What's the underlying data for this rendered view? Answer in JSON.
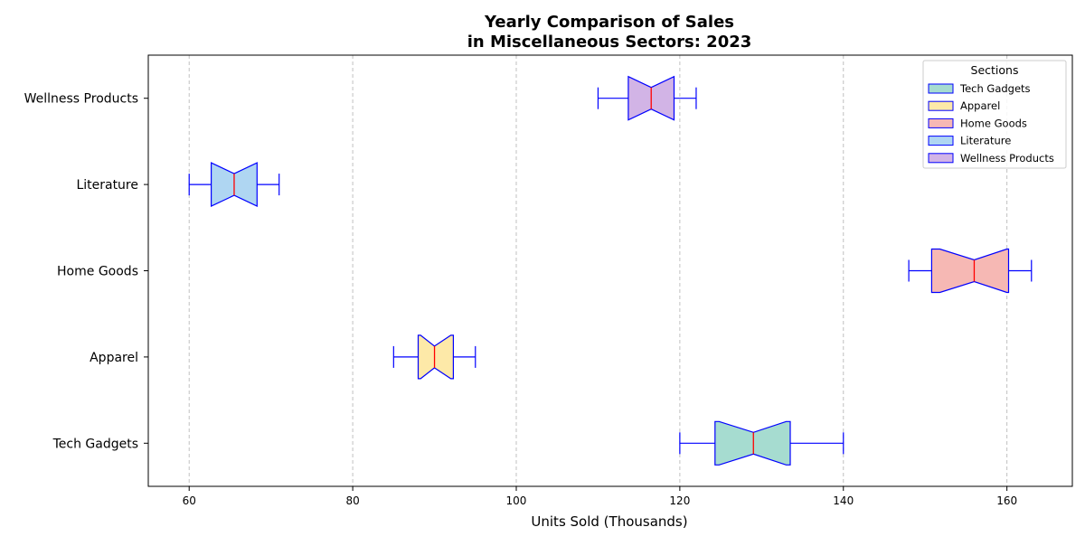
{
  "chart_data": {
    "type": "box",
    "orientation": "horizontal",
    "notched": true,
    "title_lines": [
      "Yearly Comparison of Sales",
      "in Miscellaneous Sectors: 2023"
    ],
    "xlabel": "Units Sold (Thousands)",
    "ylabel": "",
    "xlim": [
      55,
      168
    ],
    "xticks": [
      60,
      80,
      100,
      120,
      140,
      160
    ],
    "grid": "x-dashed",
    "legend_title": "Sections",
    "legend_position": "top-right",
    "series": [
      {
        "name": "Tech Gadgets",
        "min": 120,
        "q1": 124.3,
        "median": 129,
        "q3": 133.5,
        "max": 140,
        "notch_low": 124.8,
        "notch_high": 133,
        "color": "#a6dcd0"
      },
      {
        "name": "Apparel",
        "min": 85,
        "q1": 88,
        "median": 90,
        "q3": 92.3,
        "max": 95,
        "notch_low": 88.3,
        "notch_high": 92,
        "color": "#fde9a8"
      },
      {
        "name": "Home Goods",
        "min": 148,
        "q1": 150.8,
        "median": 156,
        "q3": 160.2,
        "max": 163,
        "notch_low": 151.8,
        "notch_high": 160,
        "color": "#f6b8b4"
      },
      {
        "name": "Literature",
        "min": 60,
        "q1": 62.7,
        "median": 65.5,
        "q3": 68.3,
        "max": 71,
        "notch_low": 62.7,
        "notch_high": 68.3,
        "color": "#afd6f2"
      },
      {
        "name": "Wellness Products",
        "min": 110,
        "q1": 113.7,
        "median": 116.5,
        "q3": 119.3,
        "max": 122,
        "notch_low": 113.7,
        "notch_high": 119.3,
        "color": "#d2b4e6"
      }
    ],
    "box_edge_color": "#0000ff",
    "median_color": "#ff0000"
  }
}
